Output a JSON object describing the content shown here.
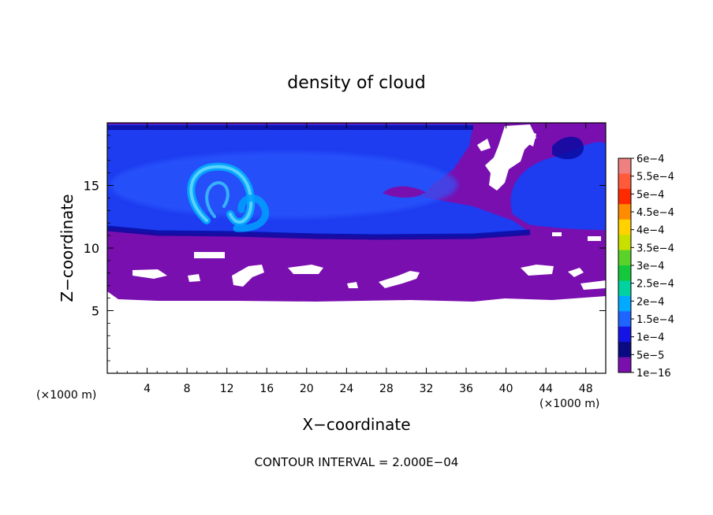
{
  "chart_data": {
    "type": "heatmap",
    "title": "density of cloud",
    "xlabel": "X−coordinate",
    "ylabel": "Z−coordinate",
    "x_unit_left": "(×1000 m)",
    "x_unit_right": "(×1000 m)",
    "footer": "CONTOUR INTERVAL = 2.000E−04",
    "xlim": [
      0,
      50
    ],
    "ylim": [
      0,
      20
    ],
    "x_ticks": [
      "4",
      "8",
      "12",
      "16",
      "20",
      "24",
      "28",
      "32",
      "36",
      "40",
      "44",
      "48"
    ],
    "x_tick_values": [
      4,
      8,
      12,
      16,
      20,
      24,
      28,
      32,
      36,
      40,
      44,
      48
    ],
    "y_ticks": [
      "5",
      "10",
      "15"
    ],
    "y_tick_values": [
      5,
      10,
      15
    ],
    "colorbar": {
      "labels": [
        "6e−4",
        "5.5e−4",
        "5e−4",
        "4.5e−4",
        "4e−4",
        "3.5e−4",
        "3e−4",
        "2.5e−4",
        "2e−4",
        "1.5e−4",
        "1e−4",
        "5e−5",
        "1e−16"
      ],
      "colors": [
        "#f08080",
        "#ff5a3a",
        "#ff2a00",
        "#ff8c00",
        "#ffd200",
        "#c8e000",
        "#5ad22a",
        "#14c83c",
        "#00d2a0",
        "#00aaff",
        "#1e64ff",
        "#1414e6",
        "#0a0a82",
        "#7a0fb0"
      ]
    },
    "regions": {
      "cloud_top": 19.7,
      "cloud_base": 6.0,
      "upper_blue_layer": [
        11.0,
        19.7
      ],
      "turret_center_x": 12.5,
      "turret_center_z": 14.0
    }
  }
}
